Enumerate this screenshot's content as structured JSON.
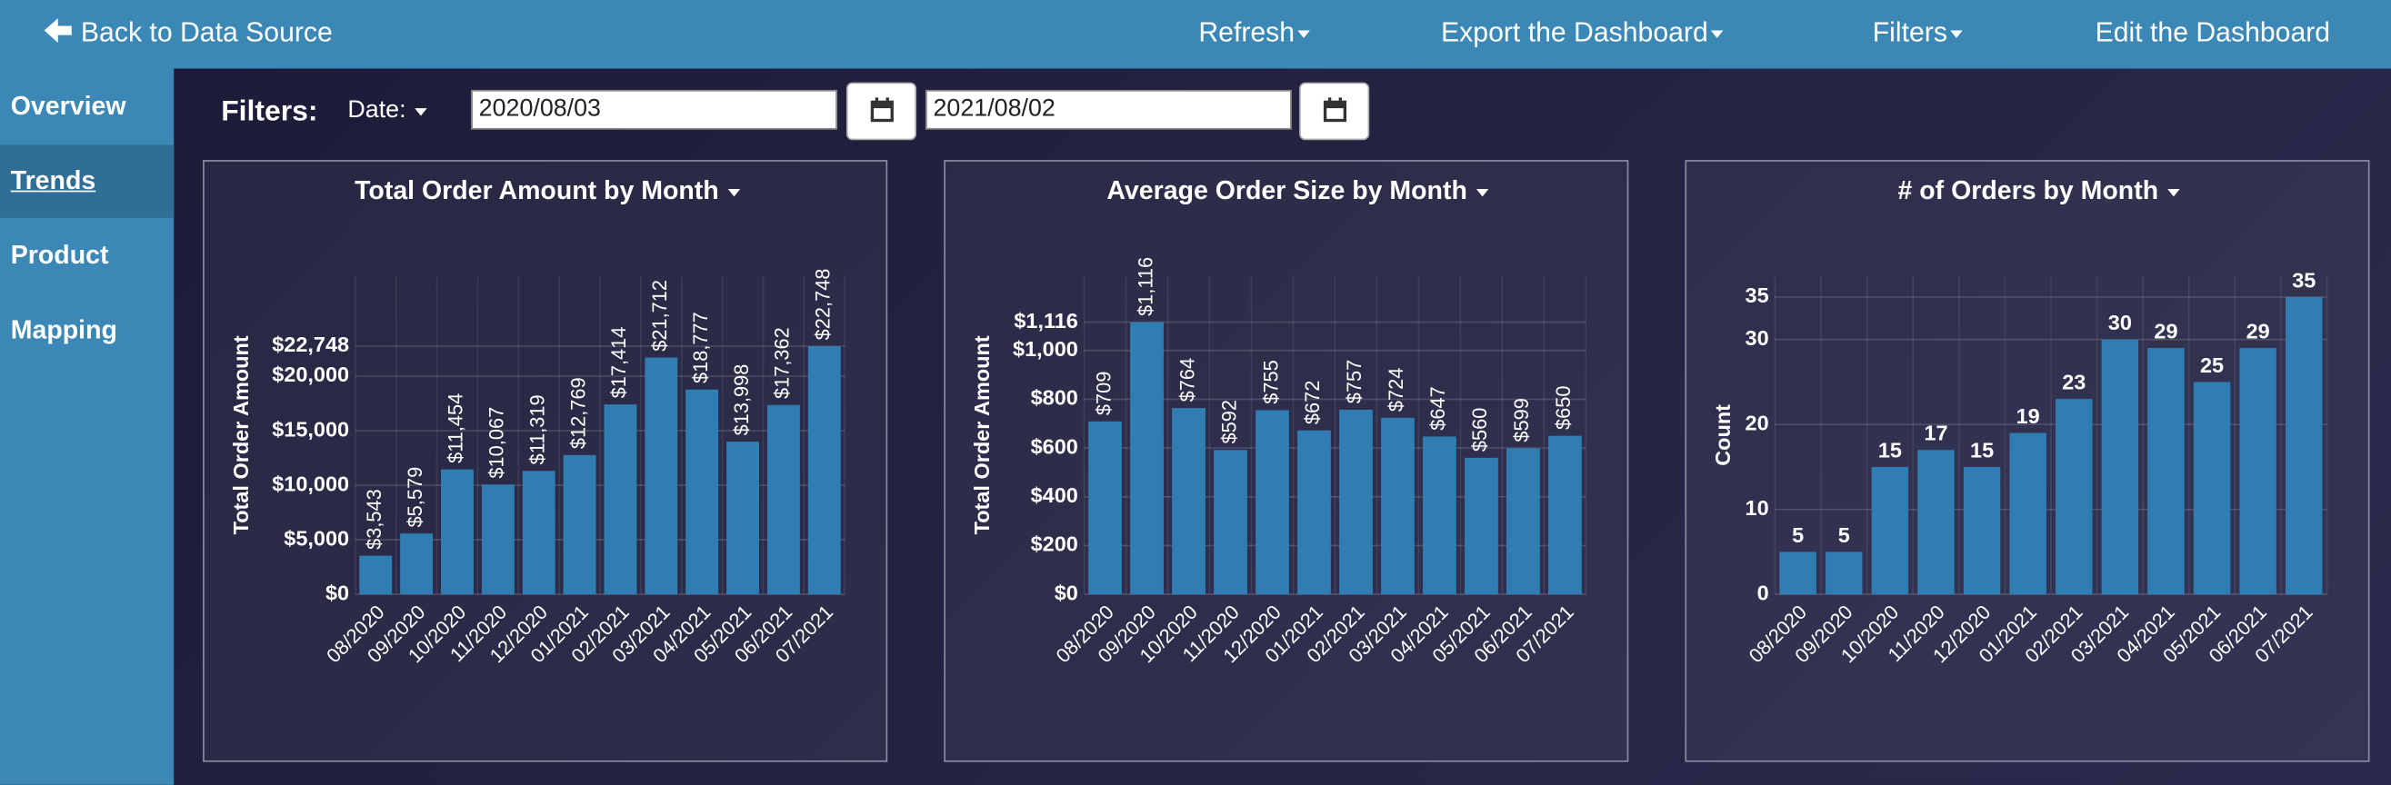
{
  "nav": {
    "back": "Back to Data Source",
    "items": [
      "Refresh",
      "Export the Dashboard",
      "Filters",
      "Edit the Dashboard"
    ]
  },
  "sidebar": {
    "items": [
      "Overview",
      "Trends",
      "Product",
      "Mapping"
    ]
  },
  "filters": {
    "label": "Filters:",
    "date": "Date:",
    "start": "2020/08/03",
    "end": "2021/08/02"
  },
  "chart_data": [
    {
      "type": "bar",
      "title": "Total Order Amount by Month",
      "y_label": "Total Order Amount",
      "categories": [
        "08/2020",
        "09/2020",
        "10/2020",
        "11/2020",
        "12/2020",
        "01/2021",
        "02/2021",
        "03/2021",
        "04/2021",
        "05/2021",
        "06/2021",
        "07/2021"
      ],
      "values": [
        3543,
        5579,
        11454,
        10067,
        11319,
        12769,
        17414,
        21712,
        18777,
        13998,
        17362,
        22748
      ],
      "value_labels": [
        "$3,543",
        "$5,579",
        "$11,454",
        "$10,067",
        "$11,319",
        "$12,769",
        "$17,414",
        "$21,712",
        "$18,777",
        "$13,998",
        "$17,362",
        "$22,748"
      ],
      "color": "#2f7db3",
      "ylim": [
        0,
        29200
      ],
      "yticks": [
        {
          "value": 0,
          "label": "$0"
        },
        {
          "value": 5000,
          "label": "$5,000"
        },
        {
          "value": 10000,
          "label": "$10,000"
        },
        {
          "value": 15000,
          "label": "$15,000"
        },
        {
          "value": 20000,
          "label": "$20,000"
        },
        {
          "value": 22748,
          "label": "$22,748"
        }
      ],
      "grid": true
    },
    {
      "type": "bar",
      "title": "Average Order Size by Month",
      "y_label": "Total Order Amount",
      "categories": [
        "08/2020",
        "09/2020",
        "10/2020",
        "11/2020",
        "12/2020",
        "01/2021",
        "02/2021",
        "03/2021",
        "04/2021",
        "05/2021",
        "06/2021",
        "07/2021"
      ],
      "values": [
        709,
        1116,
        764,
        592,
        755,
        672,
        757,
        724,
        647,
        560,
        599,
        650
      ],
      "value_labels": [
        "$709",
        "$1,116",
        "$764",
        "$592",
        "$755",
        "$672",
        "$757",
        "$724",
        "$647",
        "$560",
        "$599",
        "$650"
      ],
      "color": "#2f7db3",
      "ylim": [
        0,
        1306
      ],
      "yticks": [
        {
          "value": 0,
          "label": "$0"
        },
        {
          "value": 200,
          "label": "$200"
        },
        {
          "value": 400,
          "label": "$400"
        },
        {
          "value": 600,
          "label": "$600"
        },
        {
          "value": 800,
          "label": "$800"
        },
        {
          "value": 1000,
          "label": "$1,000"
        },
        {
          "value": 1116,
          "label": "$1,116"
        }
      ],
      "grid": true
    },
    {
      "type": "bar",
      "title": "# of Orders by Month",
      "y_label": "Count",
      "categories": [
        "08/2020",
        "09/2020",
        "10/2020",
        "11/2020",
        "12/2020",
        "01/2021",
        "02/2021",
        "03/2021",
        "04/2021",
        "05/2021",
        "06/2021",
        "07/2021"
      ],
      "values": [
        5,
        5,
        15,
        17,
        15,
        19,
        23,
        30,
        29,
        25,
        29,
        35
      ],
      "color": "#2f7db3",
      "ylim": [
        0,
        37.5
      ],
      "yticks": [
        0,
        10,
        20,
        30,
        35
      ],
      "grid": true
    }
  ]
}
